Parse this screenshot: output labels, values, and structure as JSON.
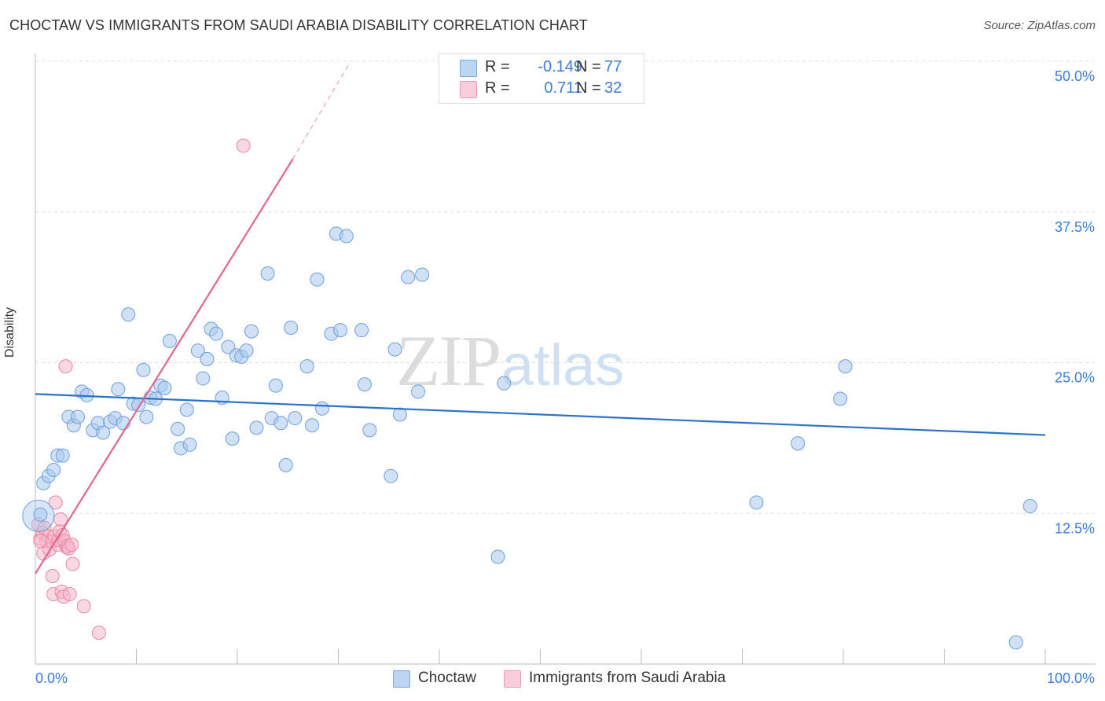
{
  "title": "CHOCTAW VS IMMIGRANTS FROM SAUDI ARABIA DISABILITY CORRELATION CHART",
  "source": "Source: ZipAtlas.com",
  "colors": {
    "blue_fill": "#a9c8ef",
    "blue_stroke": "#6e9fdc",
    "blue_line": "#2b72c8",
    "pink_fill": "#f6b8cb",
    "pink_stroke": "#ea86a6",
    "pink_line": "#e2668f",
    "tick_text": "#3b7dd8"
  },
  "stats": {
    "rows": [
      {
        "r_label": "R =",
        "r_value": "-0.149",
        "n_label": "N =",
        "n_value": "77"
      },
      {
        "r_label": "R =",
        "r_value": "0.711",
        "n_label": "N =",
        "n_value": "32"
      }
    ]
  },
  "legend": {
    "items": [
      "Choctaw",
      "Immigrants from Saudi Arabia"
    ]
  },
  "chart_data": {
    "type": "scatter",
    "title": "CHOCTAW VS IMMIGRANTS FROM SAUDI ARABIA DISABILITY CORRELATION CHART",
    "xlabel": "",
    "ylabel": "Disability",
    "xlim": [
      0,
      100
    ],
    "ylim": [
      0,
      50
    ],
    "x_tick_labels": [
      "0.0%",
      "100.0%"
    ],
    "y_ticks": [
      12.5,
      25.0,
      37.5,
      50.0
    ],
    "y_tick_labels": [
      "12.5%",
      "25.0%",
      "37.5%",
      "50.0%"
    ],
    "grid": true,
    "watermark": "ZIPatlas",
    "series": [
      {
        "name": "Choctaw",
        "color": "#a9c8ef",
        "r": -0.149,
        "n": 77,
        "trend": {
          "x": [
            0,
            100
          ],
          "y": [
            22.4,
            19.0
          ]
        },
        "points": [
          [
            0.5,
            12.4
          ],
          [
            0.8,
            15.0
          ],
          [
            1.3,
            15.6
          ],
          [
            1.8,
            16.1
          ],
          [
            2.2,
            17.3
          ],
          [
            2.7,
            17.3
          ],
          [
            3.3,
            20.5
          ],
          [
            3.8,
            19.8
          ],
          [
            4.2,
            20.5
          ],
          [
            4.6,
            22.6
          ],
          [
            5.1,
            22.3
          ],
          [
            5.7,
            19.4
          ],
          [
            6.2,
            20.0
          ],
          [
            6.7,
            19.2
          ],
          [
            7.4,
            20.1
          ],
          [
            7.9,
            20.4
          ],
          [
            8.2,
            22.8
          ],
          [
            8.7,
            20.0
          ],
          [
            9.2,
            29.0
          ],
          [
            9.7,
            21.6
          ],
          [
            10.2,
            21.5
          ],
          [
            10.7,
            24.4
          ],
          [
            11.0,
            20.5
          ],
          [
            11.4,
            22.1
          ],
          [
            11.9,
            22.0
          ],
          [
            12.4,
            23.1
          ],
          [
            12.8,
            22.9
          ],
          [
            13.3,
            26.8
          ],
          [
            14.1,
            19.5
          ],
          [
            14.4,
            17.9
          ],
          [
            15.0,
            21.1
          ],
          [
            15.3,
            18.2
          ],
          [
            16.1,
            26.0
          ],
          [
            16.6,
            23.7
          ],
          [
            17.0,
            25.3
          ],
          [
            17.4,
            27.8
          ],
          [
            17.9,
            27.4
          ],
          [
            18.5,
            22.1
          ],
          [
            19.1,
            26.3
          ],
          [
            19.5,
            18.7
          ],
          [
            19.9,
            25.6
          ],
          [
            20.4,
            25.5
          ],
          [
            20.9,
            26.0
          ],
          [
            21.4,
            27.6
          ],
          [
            21.9,
            19.6
          ],
          [
            23.0,
            32.4
          ],
          [
            23.4,
            20.4
          ],
          [
            23.8,
            23.1
          ],
          [
            24.3,
            20.0
          ],
          [
            24.8,
            16.5
          ],
          [
            25.3,
            27.9
          ],
          [
            25.7,
            20.4
          ],
          [
            26.9,
            24.7
          ],
          [
            27.4,
            19.8
          ],
          [
            27.9,
            31.9
          ],
          [
            28.4,
            21.2
          ],
          [
            29.3,
            27.4
          ],
          [
            29.8,
            35.7
          ],
          [
            30.2,
            27.7
          ],
          [
            30.8,
            35.5
          ],
          [
            32.3,
            27.7
          ],
          [
            32.6,
            23.2
          ],
          [
            33.1,
            19.4
          ],
          [
            35.2,
            15.6
          ],
          [
            35.6,
            26.1
          ],
          [
            36.1,
            20.7
          ],
          [
            36.9,
            32.1
          ],
          [
            38.3,
            32.3
          ],
          [
            37.9,
            22.6
          ],
          [
            45.8,
            8.9
          ],
          [
            46.4,
            23.3
          ],
          [
            71.4,
            13.4
          ],
          [
            75.5,
            18.3
          ],
          [
            79.7,
            22.0
          ],
          [
            80.2,
            24.7
          ],
          [
            97.1,
            1.8
          ],
          [
            98.5,
            13.1
          ]
        ]
      },
      {
        "name": "Immigrants from Saudi Arabia",
        "color": "#f6b8cb",
        "r": 0.711,
        "n": 32,
        "trend": {
          "x": [
            0,
            25.5
          ],
          "y": [
            7.5,
            41.9
          ]
        },
        "trend_dashed": {
          "x": [
            25.5,
            31.0
          ],
          "y": [
            41.9,
            49.7
          ]
        },
        "points": [
          [
            0.3,
            11.6
          ],
          [
            0.5,
            10.4
          ],
          [
            0.7,
            10.9
          ],
          [
            0.8,
            9.2
          ],
          [
            0.9,
            11.3
          ],
          [
            1.1,
            10.2
          ],
          [
            1.3,
            10.6
          ],
          [
            1.4,
            9.5
          ],
          [
            1.6,
            10.2
          ],
          [
            1.7,
            7.3
          ],
          [
            1.8,
            5.8
          ],
          [
            1.9,
            10.6
          ],
          [
            2.0,
            13.4
          ],
          [
            2.2,
            9.9
          ],
          [
            2.3,
            10.3
          ],
          [
            2.4,
            11.0
          ],
          [
            2.5,
            12.0
          ],
          [
            2.6,
            6.0
          ],
          [
            2.7,
            10.7
          ],
          [
            2.8,
            5.6
          ],
          [
            2.9,
            10.2
          ],
          [
            3.0,
            24.7
          ],
          [
            3.1,
            9.7
          ],
          [
            3.2,
            9.8
          ],
          [
            3.3,
            9.6
          ],
          [
            3.4,
            5.8
          ],
          [
            3.6,
            9.9
          ],
          [
            3.7,
            8.3
          ],
          [
            4.8,
            4.8
          ],
          [
            6.3,
            2.6
          ],
          [
            20.6,
            43.0
          ],
          [
            0.5,
            10.2
          ]
        ]
      }
    ]
  }
}
